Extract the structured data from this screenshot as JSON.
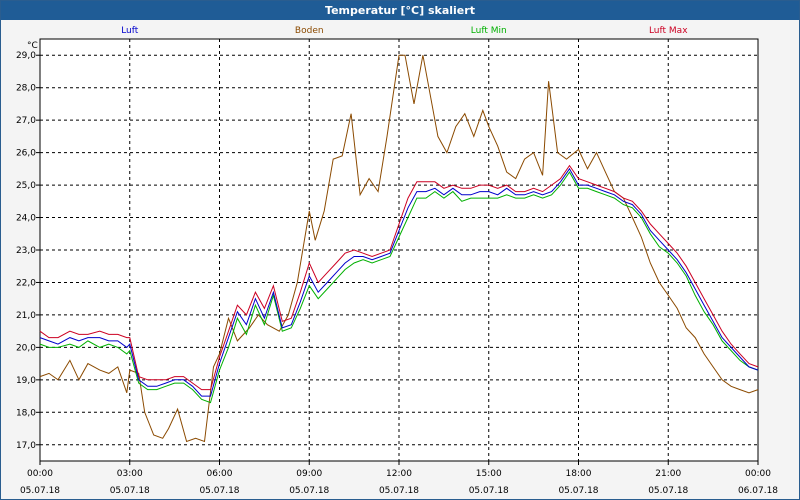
{
  "window": {
    "title": "Temperatur [°C] skaliert"
  },
  "chart_data": {
    "type": "line",
    "title": "Temperatur [°C] skaliert",
    "ylabel": "°C",
    "xlabel": "",
    "ylim": [
      16.5,
      29.5
    ],
    "xlim": [
      0,
      24
    ],
    "grid": true,
    "legend_position": "top",
    "yticks": [
      "17,0",
      "18,0",
      "19,0",
      "20,0",
      "21,0",
      "22,0",
      "23,0",
      "24,0",
      "25,0",
      "26,0",
      "27,0",
      "28,0",
      "29,0"
    ],
    "ytick_values": [
      17,
      18,
      19,
      20,
      21,
      22,
      23,
      24,
      25,
      26,
      27,
      28,
      29
    ],
    "xticks": [
      {
        "time": "00:00",
        "date": "05.07.18",
        "hour": 0
      },
      {
        "time": "03:00",
        "date": "05.07.18",
        "hour": 3
      },
      {
        "time": "06:00",
        "date": "05.07.18",
        "hour": 6
      },
      {
        "time": "09:00",
        "date": "05.07.18",
        "hour": 9
      },
      {
        "time": "12:00",
        "date": "05.07.18",
        "hour": 12
      },
      {
        "time": "15:00",
        "date": "05.07.18",
        "hour": 15
      },
      {
        "time": "18:00",
        "date": "05.07.18",
        "hour": 18
      },
      {
        "time": "21:00",
        "date": "05.07.18",
        "hour": 21
      },
      {
        "time": "00:00",
        "date": "06.07.18",
        "hour": 24
      }
    ],
    "series": [
      {
        "name": "Boden",
        "color": "#8b4a00",
        "x": [
          0,
          0.3,
          0.6,
          1,
          1.3,
          1.6,
          2,
          2.3,
          2.6,
          2.9,
          3,
          3.3,
          3.5,
          3.8,
          4.1,
          4.3,
          4.6,
          4.9,
          5.2,
          5.5,
          5.8,
          6,
          6.3,
          6.6,
          7,
          7.3,
          7.6,
          8,
          8.3,
          8.6,
          9,
          9.2,
          9.5,
          9.8,
          10.1,
          10.4,
          10.7,
          11,
          11.3,
          11.6,
          12,
          12.2,
          12.5,
          12.8,
          13,
          13.3,
          13.6,
          13.9,
          14.2,
          14.5,
          14.8,
          15,
          15.3,
          15.6,
          15.9,
          16.2,
          16.5,
          16.8,
          17,
          17.3,
          17.6,
          18,
          18.3,
          18.6,
          18.9,
          19.2,
          19.5,
          19.8,
          20.1,
          20.4,
          20.7,
          21,
          21.3,
          21.6,
          21.9,
          22.2,
          22.5,
          22.8,
          23.1,
          23.4,
          23.7,
          24
        ],
        "y": [
          19.1,
          19.2,
          19.0,
          19.6,
          19.0,
          19.5,
          19.3,
          19.2,
          19.4,
          18.6,
          19.3,
          19.2,
          18.0,
          17.3,
          17.2,
          17.5,
          18.1,
          17.1,
          17.2,
          17.1,
          19.4,
          19.8,
          20.9,
          20.2,
          20.6,
          21.0,
          20.7,
          20.5,
          21.0,
          22.0,
          24.2,
          23.3,
          24.2,
          25.8,
          25.9,
          27.2,
          24.7,
          25.2,
          24.8,
          26.5,
          29.0,
          29.0,
          27.5,
          29.0,
          28.0,
          26.5,
          26.0,
          26.8,
          27.2,
          26.5,
          27.3,
          26.8,
          26.2,
          25.4,
          25.2,
          25.8,
          26.0,
          25.3,
          28.2,
          26.0,
          25.8,
          26.1,
          25.5,
          26.0,
          25.4,
          24.8,
          24.6,
          24.0,
          23.4,
          22.6,
          22.0,
          21.6,
          21.2,
          20.6,
          20.3,
          19.8,
          19.4,
          19.0,
          18.8,
          18.7,
          18.6,
          18.7
        ]
      },
      {
        "name": "Luft Min",
        "color": "#00b000",
        "x": [
          0,
          0.3,
          0.6,
          1,
          1.3,
          1.6,
          2,
          2.3,
          2.6,
          2.9,
          3,
          3.3,
          3.6,
          3.9,
          4.2,
          4.5,
          4.8,
          5.1,
          5.4,
          5.7,
          6,
          6.3,
          6.6,
          6.9,
          7.2,
          7.5,
          7.8,
          8.1,
          8.4,
          8.7,
          9,
          9.3,
          9.6,
          9.9,
          10.2,
          10.5,
          10.8,
          11.1,
          11.4,
          11.7,
          12,
          12.3,
          12.6,
          12.9,
          13.2,
          13.5,
          13.8,
          14.1,
          14.4,
          14.7,
          15,
          15.3,
          15.6,
          15.9,
          16.2,
          16.5,
          16.8,
          17.1,
          17.4,
          17.7,
          18,
          18.3,
          18.6,
          18.9,
          19.2,
          19.5,
          19.8,
          20.1,
          20.4,
          20.7,
          21,
          21.3,
          21.6,
          21.9,
          22.2,
          22.5,
          22.8,
          23.1,
          23.4,
          23.7,
          24
        ],
        "y": [
          20.1,
          20.0,
          20.0,
          20.1,
          20.0,
          20.2,
          20.0,
          20.1,
          20.0,
          19.8,
          19.9,
          18.9,
          18.7,
          18.7,
          18.8,
          18.9,
          18.9,
          18.7,
          18.4,
          18.3,
          19.3,
          20.0,
          20.9,
          20.4,
          21.3,
          20.7,
          21.6,
          20.5,
          20.6,
          21.2,
          21.9,
          21.5,
          21.8,
          22.1,
          22.4,
          22.6,
          22.7,
          22.6,
          22.7,
          22.8,
          23.4,
          24.0,
          24.6,
          24.6,
          24.8,
          24.6,
          24.8,
          24.5,
          24.6,
          24.6,
          24.6,
          24.6,
          24.7,
          24.6,
          24.6,
          24.7,
          24.6,
          24.7,
          25.0,
          25.4,
          24.9,
          24.9,
          24.8,
          24.7,
          24.6,
          24.4,
          24.3,
          24.0,
          23.5,
          23.1,
          22.9,
          22.6,
          22.2,
          21.6,
          21.1,
          20.7,
          20.2,
          19.9,
          19.6,
          19.4,
          19.3
        ]
      },
      {
        "name": "Luft Max",
        "color": "#cc0022",
        "x": [
          0,
          0.3,
          0.6,
          1,
          1.3,
          1.6,
          2,
          2.3,
          2.6,
          2.9,
          3,
          3.3,
          3.6,
          3.9,
          4.2,
          4.5,
          4.8,
          5.1,
          5.4,
          5.7,
          6,
          6.3,
          6.6,
          6.9,
          7.2,
          7.5,
          7.8,
          8.1,
          8.4,
          8.7,
          9,
          9.3,
          9.6,
          9.9,
          10.2,
          10.5,
          10.8,
          11.1,
          11.4,
          11.7,
          12,
          12.3,
          12.6,
          12.9,
          13.2,
          13.5,
          13.8,
          14.1,
          14.4,
          14.7,
          15,
          15.3,
          15.6,
          15.9,
          16.2,
          16.5,
          16.8,
          17.1,
          17.4,
          17.7,
          18,
          18.3,
          18.6,
          18.9,
          19.2,
          19.5,
          19.8,
          20.1,
          20.4,
          20.7,
          21,
          21.3,
          21.6,
          21.9,
          22.2,
          22.5,
          22.8,
          23.1,
          23.4,
          23.7,
          24
        ],
        "y": [
          20.5,
          20.3,
          20.3,
          20.5,
          20.4,
          20.4,
          20.5,
          20.4,
          20.4,
          20.3,
          20.3,
          19.1,
          19.0,
          19.0,
          19.0,
          19.1,
          19.1,
          18.9,
          18.7,
          18.7,
          19.7,
          20.5,
          21.3,
          21.0,
          21.7,
          21.2,
          21.9,
          20.8,
          20.9,
          21.7,
          22.6,
          22.0,
          22.3,
          22.6,
          22.9,
          23.0,
          22.9,
          22.8,
          22.9,
          23.0,
          23.8,
          24.6,
          25.1,
          25.1,
          25.1,
          24.9,
          25.0,
          24.9,
          24.9,
          25.0,
          25.0,
          24.9,
          25.0,
          24.8,
          24.8,
          24.9,
          24.8,
          25.0,
          25.2,
          25.6,
          25.2,
          25.1,
          25.0,
          24.9,
          24.8,
          24.6,
          24.5,
          24.2,
          23.8,
          23.5,
          23.2,
          22.9,
          22.5,
          22.0,
          21.5,
          21.0,
          20.5,
          20.1,
          19.8,
          19.5,
          19.4
        ]
      },
      {
        "name": "Luft",
        "color": "#0000cc",
        "x": [
          0,
          0.3,
          0.6,
          1,
          1.3,
          1.6,
          2,
          2.3,
          2.6,
          2.9,
          3,
          3.3,
          3.6,
          3.9,
          4.2,
          4.5,
          4.8,
          5.1,
          5.4,
          5.7,
          6,
          6.3,
          6.6,
          6.9,
          7.2,
          7.5,
          7.8,
          8.1,
          8.4,
          8.7,
          9,
          9.3,
          9.6,
          9.9,
          10.2,
          10.5,
          10.8,
          11.1,
          11.4,
          11.7,
          12,
          12.3,
          12.6,
          12.9,
          13.2,
          13.5,
          13.8,
          14.1,
          14.4,
          14.7,
          15,
          15.3,
          15.6,
          15.9,
          16.2,
          16.5,
          16.8,
          17.1,
          17.4,
          17.7,
          18,
          18.3,
          18.6,
          18.9,
          19.2,
          19.5,
          19.8,
          20.1,
          20.4,
          20.7,
          21,
          21.3,
          21.6,
          21.9,
          22.2,
          22.5,
          22.8,
          23.1,
          23.4,
          23.7,
          24
        ],
        "y": [
          20.3,
          20.2,
          20.1,
          20.3,
          20.2,
          20.3,
          20.3,
          20.2,
          20.2,
          20.0,
          20.1,
          19.0,
          18.8,
          18.8,
          18.9,
          19.0,
          19.0,
          18.8,
          18.5,
          18.5,
          19.5,
          20.3,
          21.1,
          20.7,
          21.5,
          20.9,
          21.7,
          20.6,
          20.7,
          21.4,
          22.2,
          21.7,
          22.0,
          22.3,
          22.6,
          22.8,
          22.8,
          22.7,
          22.8,
          22.9,
          23.6,
          24.3,
          24.8,
          24.8,
          24.9,
          24.7,
          24.9,
          24.7,
          24.7,
          24.8,
          24.8,
          24.7,
          24.9,
          24.7,
          24.7,
          24.8,
          24.7,
          24.8,
          25.1,
          25.5,
          25.0,
          25.0,
          24.9,
          24.8,
          24.7,
          24.5,
          24.4,
          24.1,
          23.6,
          23.3,
          23.0,
          22.7,
          22.3,
          21.8,
          21.3,
          20.8,
          20.3,
          20.0,
          19.7,
          19.4,
          19.3
        ]
      }
    ],
    "legend": [
      {
        "name": "Luft",
        "color": "#0000cc"
      },
      {
        "name": "Boden",
        "color": "#8b4a00"
      },
      {
        "name": "Luft Min",
        "color": "#00b000"
      },
      {
        "name": "Luft Max",
        "color": "#cc0022"
      }
    ]
  }
}
